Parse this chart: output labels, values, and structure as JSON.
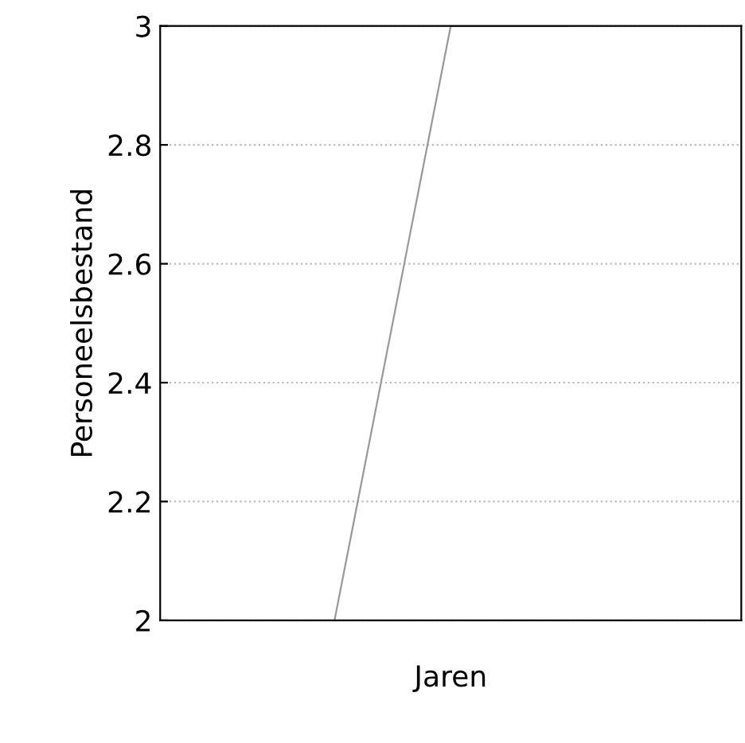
{
  "chart_data": {
    "type": "line",
    "xlabel": "Jaren",
    "ylabel": "Personeelsbestand",
    "categories": [
      null,
      null,
      null,
      null,
      null
    ],
    "series": [
      {
        "color": "#999999",
        "values": [
          null,
          2,
          3,
          3,
          null
        ]
      }
    ],
    "ylim": [
      2,
      3
    ],
    "yticks": [
      2,
      2.2,
      2.4,
      2.6,
      2.8,
      3
    ],
    "grid": "y",
    "line_style": "solid",
    "marker": "none",
    "tick_labels": "y"
  }
}
